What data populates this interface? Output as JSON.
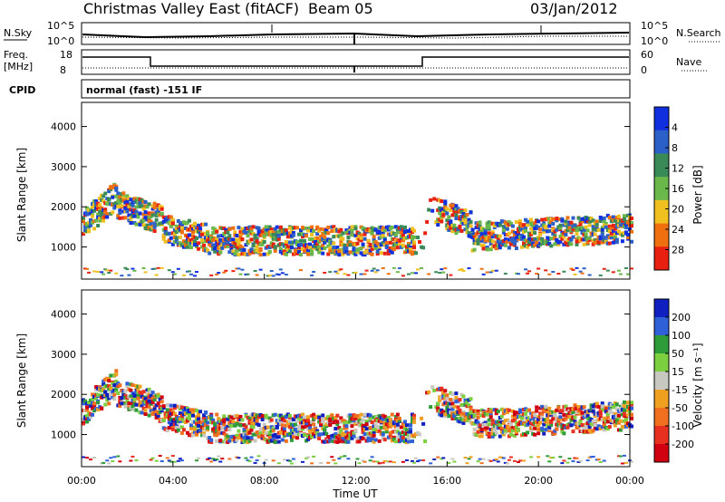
{
  "header": {
    "title": "Christmas Valley East (fitACF)",
    "beam": "Beam 05",
    "date": "03/Jan/2012"
  },
  "top_panels": {
    "nsky_label": "N.Sky",
    "nsearch_label": "N.Search",
    "noise_ticks_left": [
      "10^5",
      "10^0"
    ],
    "noise_ticks_right": [
      "10^5",
      "10^0"
    ],
    "freq_label": "Freq.",
    "freq_unit": "[MHz]",
    "freq_ticks": [
      "18",
      "8"
    ],
    "nave_label": "Nave",
    "nave_ticks": [
      "60",
      "0"
    ],
    "cpid_label": "CPID",
    "cpid_value": "normal (fast) -151 IF"
  },
  "chart_data": [
    {
      "type": "heatmap",
      "name": "power",
      "ylabel": "Slant Range [km]",
      "yticks": [
        "1000",
        "2000",
        "3000",
        "4000"
      ],
      "ylim": [
        200,
        4600
      ],
      "xlim": [
        0,
        24
      ],
      "colorbar_label": "Power [dB]",
      "colorbar_ticks": [
        "4",
        "8",
        "12",
        "16",
        "20",
        "24",
        "28"
      ],
      "colorbar_colors": [
        "#1030e0",
        "#2a60c8",
        "#3a8a58",
        "#6ab84a",
        "#f0c020",
        "#f07010",
        "#e82010"
      ]
    },
    {
      "type": "heatmap",
      "name": "velocity",
      "ylabel": "Slant Range [km]",
      "yticks": [
        "1000",
        "2000",
        "3000",
        "4000"
      ],
      "ylim": [
        200,
        4600
      ],
      "xlim": [
        0,
        24
      ],
      "xlabel": "Time UT",
      "xticks": [
        "00:00",
        "04:00",
        "08:00",
        "12:00",
        "16:00",
        "20:00",
        "00:00"
      ],
      "colorbar_label": "Velocity [m s⁻¹]",
      "colorbar_ticks": [
        "200",
        "100",
        "50",
        "15",
        "-15",
        "-50",
        "-100",
        "-200"
      ],
      "colorbar_colors": [
        "#1020c0",
        "#3060d8",
        "#2f9c3a",
        "#7cd040",
        "#c8c8c0",
        "#f0a020",
        "#f07020",
        "#e83020",
        "#d00010"
      ]
    }
  ]
}
